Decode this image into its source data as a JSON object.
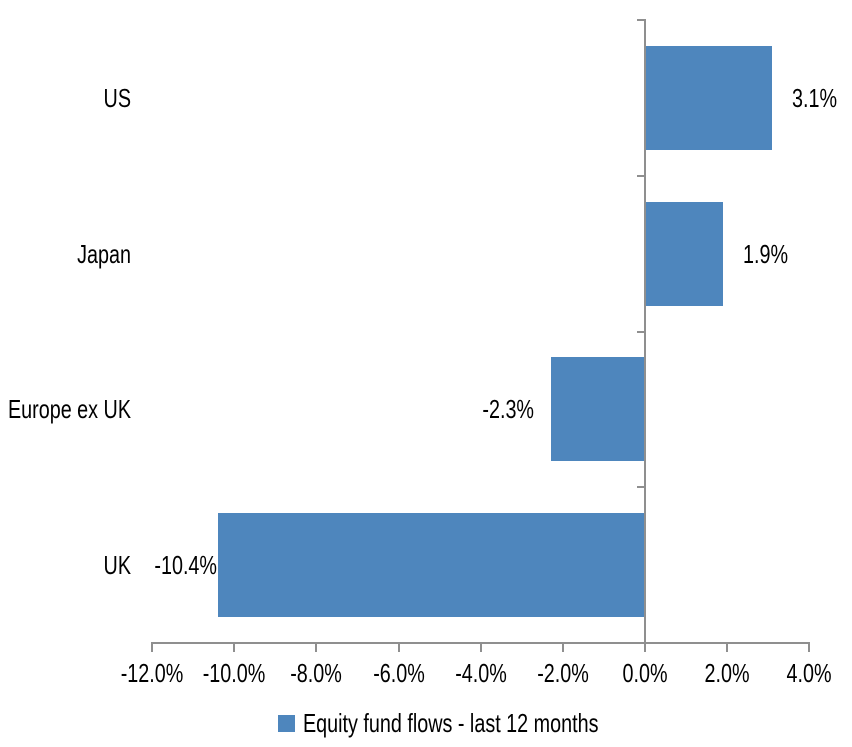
{
  "chart_data": {
    "type": "bar",
    "orientation": "horizontal",
    "title": "",
    "xlabel": "",
    "ylabel": "",
    "categories": [
      "US",
      "Japan",
      "Europe ex UK",
      "UK"
    ],
    "series": [
      {
        "name": "Equity fund flows - last 12 months",
        "values": [
          3.1,
          1.9,
          -2.3,
          -10.4
        ],
        "data_labels": [
          "3.1%",
          "1.9%",
          "-2.3%",
          "-10.4%"
        ]
      }
    ],
    "value_unit": "%",
    "x_axis": {
      "min": -12.0,
      "max": 4.0,
      "tick_step": 2.0,
      "tick_labels": [
        "-12.0%",
        "-10.0%",
        "-8.0%",
        "-6.0%",
        "-4.0%",
        "-2.0%",
        "0.0%",
        "2.0%",
        "4.0%"
      ]
    },
    "grid": false,
    "legend_position": "bottom",
    "colors": {
      "bar": "#4E86BD",
      "axis": "#8F8F8F",
      "text": "#000000",
      "background": "#FFFFFF"
    }
  },
  "legend": {
    "label": "Equity fund flows - last 12 months",
    "swatch_color": "#4E86BD"
  }
}
